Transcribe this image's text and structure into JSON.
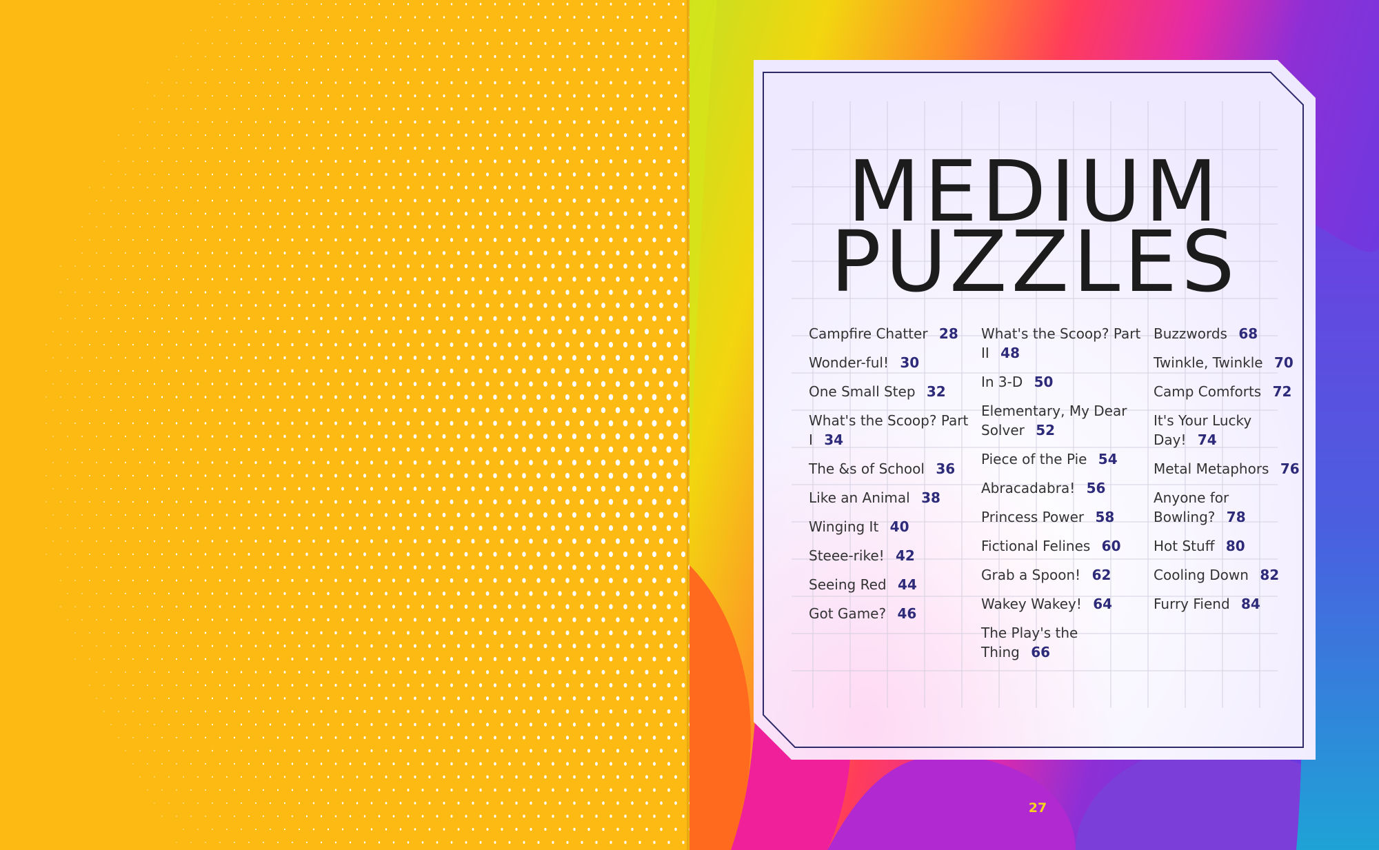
{
  "title": {
    "line1": "MEDIUM",
    "line2": "PUZZLES"
  },
  "toc": {
    "columns": [
      [
        {
          "label": "Campfire Chatter",
          "page": "28"
        },
        {
          "label": "Wonder-ful!",
          "page": "30"
        },
        {
          "label": "One Small Step",
          "page": "32"
        },
        {
          "label": "What's the Scoop? Part I",
          "page": "34"
        },
        {
          "label": "The &s of School",
          "page": "36"
        },
        {
          "label": "Like an Animal",
          "page": "38"
        },
        {
          "label": "Winging It",
          "page": "40"
        },
        {
          "label": "Steee-rike!",
          "page": "42"
        },
        {
          "label": "Seeing Red",
          "page": "44"
        },
        {
          "label": "Got Game?",
          "page": "46"
        }
      ],
      [
        {
          "label": "What's the Scoop? Part II",
          "page": "48"
        },
        {
          "label": "In 3-D",
          "page": "50"
        },
        {
          "label": "Elementary, My Dear Solver",
          "page": "52"
        },
        {
          "label": "Piece of the Pie",
          "page": "54"
        },
        {
          "label": "Abracadabra!",
          "page": "56"
        },
        {
          "label": "Princess Power",
          "page": "58"
        },
        {
          "label": "Fictional Felines",
          "page": "60"
        },
        {
          "label": "Grab a Spoon!",
          "page": "62"
        },
        {
          "label": "Wakey Wakey!",
          "page": "64"
        },
        {
          "label": "The Play's the Thing",
          "page": "66"
        }
      ],
      [
        {
          "label": "Buzzwords",
          "page": "68"
        },
        {
          "label": "Twinkle, Twinkle",
          "page": "70"
        },
        {
          "label": "Camp Comforts",
          "page": "72"
        },
        {
          "label": "It's Your Lucky Day!",
          "page": "74"
        },
        {
          "label": "Metal Metaphors",
          "page": "76"
        },
        {
          "label": "Anyone for Bowling?",
          "page": "78"
        },
        {
          "label": "Hot Stuff",
          "page": "80"
        },
        {
          "label": "Cooling Down",
          "page": "82"
        },
        {
          "label": "Furry Fiend",
          "page": "84"
        }
      ]
    ]
  },
  "folio": "27",
  "colors": {
    "left_page_bg": "#fdba12",
    "dot": "#ffffff",
    "title_text": "#1c1c1c",
    "page_number_accent": "#2e2a7a",
    "frame_line": "#2e2a6a",
    "folio_text": "#f7d21e"
  }
}
